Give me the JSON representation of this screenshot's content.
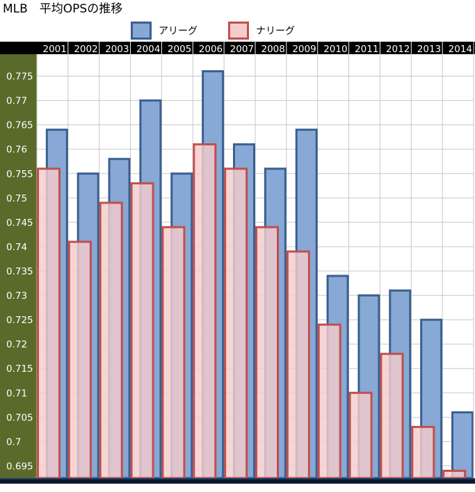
{
  "title": "MLB　平均OPSの推移",
  "legend": [
    {
      "label": "アリーグ",
      "fill": "#88a8d6",
      "stroke": "#3a5f8f"
    },
    {
      "label": "ナリーグ",
      "fill": "#f4cccc",
      "stroke": "#c0504d"
    }
  ],
  "colors": {
    "header_bg": "#000000",
    "header_text": "#ffffff",
    "axis_bg": "#596a2b",
    "axis_text": "#ffffff",
    "grid": "#c8c8c8",
    "baseline": "#0a1a2e"
  },
  "chart_data": {
    "type": "bar",
    "title": "MLB　平均OPSの推移",
    "categories": [
      "2001",
      "2002",
      "2003",
      "2004",
      "2005",
      "2006",
      "2007",
      "2008",
      "2009",
      "2010",
      "2011",
      "2012",
      "2013",
      "2014"
    ],
    "series": [
      {
        "name": "アリーグ",
        "values": [
          0.764,
          0.755,
          0.758,
          0.77,
          0.755,
          0.776,
          0.761,
          0.756,
          0.764,
          0.734,
          0.73,
          0.731,
          0.725,
          0.706
        ]
      },
      {
        "name": "ナリーグ",
        "values": [
          0.756,
          0.741,
          0.749,
          0.753,
          0.744,
          0.761,
          0.756,
          0.744,
          0.739,
          0.724,
          0.71,
          0.718,
          0.703,
          0.694
        ]
      }
    ],
    "y_ticks": [
      "0.775",
      "0.77",
      "0.765",
      "0.76",
      "0.755",
      "0.75",
      "0.745",
      "0.74",
      "0.735",
      "0.73",
      "0.725",
      "0.72",
      "0.715",
      "0.71",
      "0.705",
      "0.7",
      "0.695"
    ],
    "ylim": [
      0.6925,
      0.7795
    ],
    "grid": true,
    "legend_position": "top"
  }
}
